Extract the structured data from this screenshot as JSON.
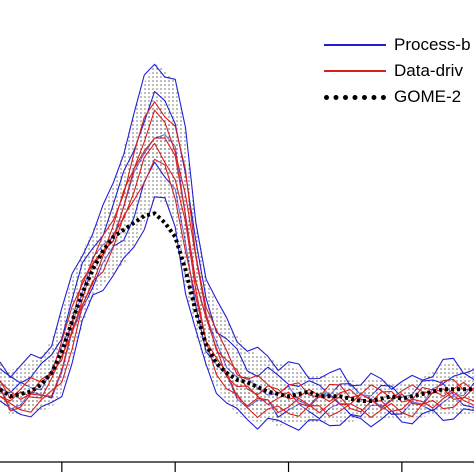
{
  "chart_data": {
    "type": "line",
    "title": "",
    "xlabel": "",
    "ylabel": "",
    "grid": false,
    "legend_placement": "top-right",
    "colors": {
      "process": "#1f1fd6",
      "data": "#d62020",
      "gome": "#000000"
    },
    "x": [
      0,
      1,
      2,
      3,
      4,
      5,
      6,
      7,
      8,
      9,
      10,
      11,
      12,
      13,
      14,
      15,
      16,
      17,
      18,
      19,
      20,
      21,
      22,
      23,
      24,
      25,
      26,
      27,
      28,
      29,
      30,
      31,
      32,
      33,
      34,
      35,
      36,
      37,
      38,
      39,
      40,
      41,
      42,
      43,
      44,
      45,
      46
    ],
    "series": [
      {
        "name": "Process-based",
        "style": "band",
        "upper": [
          0.3,
          0.27,
          0.29,
          0.31,
          0.33,
          0.4,
          0.52,
          0.66,
          0.78,
          0.87,
          0.95,
          1.06,
          1.22,
          1.37,
          1.5,
          1.58,
          1.55,
          1.5,
          1.28,
          0.92,
          0.68,
          0.55,
          0.48,
          0.42,
          0.36,
          0.34,
          0.33,
          0.3,
          0.3,
          0.27,
          0.25,
          0.26,
          0.24,
          0.26,
          0.23,
          0.22,
          0.23,
          0.23,
          0.22,
          0.22,
          0.22,
          0.24,
          0.27,
          0.3,
          0.3,
          0.28,
          0.29
        ],
        "lower": [
          0.14,
          0.08,
          0.09,
          0.1,
          0.1,
          0.11,
          0.18,
          0.32,
          0.46,
          0.58,
          0.64,
          0.68,
          0.72,
          0.8,
          0.9,
          1.0,
          0.98,
          0.9,
          0.62,
          0.42,
          0.28,
          0.2,
          0.14,
          0.08,
          0.06,
          0.05,
          0.06,
          0.03,
          0.05,
          0.04,
          0.04,
          0.04,
          0.06,
          0.05,
          0.05,
          0.06,
          0.06,
          0.06,
          0.07,
          0.06,
          0.07,
          0.07,
          0.08,
          0.08,
          0.08,
          0.08,
          0.09
        ]
      },
      {
        "name": "Data-driven",
        "style": "band",
        "upper": [
          0.22,
          0.18,
          0.19,
          0.21,
          0.23,
          0.28,
          0.38,
          0.52,
          0.66,
          0.76,
          0.82,
          0.9,
          1.05,
          1.2,
          1.32,
          1.42,
          1.38,
          1.3,
          1.1,
          0.78,
          0.56,
          0.42,
          0.34,
          0.28,
          0.24,
          0.22,
          0.21,
          0.2,
          0.2,
          0.19,
          0.18,
          0.18,
          0.19,
          0.19,
          0.18,
          0.18,
          0.18,
          0.18,
          0.18,
          0.18,
          0.18,
          0.19,
          0.2,
          0.21,
          0.21,
          0.21,
          0.21
        ],
        "lower": [
          0.16,
          0.1,
          0.11,
          0.12,
          0.13,
          0.16,
          0.24,
          0.38,
          0.52,
          0.64,
          0.72,
          0.8,
          0.9,
          1.0,
          1.1,
          1.16,
          1.12,
          1.02,
          0.8,
          0.56,
          0.38,
          0.28,
          0.2,
          0.14,
          0.11,
          0.1,
          0.1,
          0.09,
          0.1,
          0.1,
          0.1,
          0.1,
          0.1,
          0.11,
          0.1,
          0.1,
          0.1,
          0.1,
          0.1,
          0.1,
          0.1,
          0.11,
          0.12,
          0.13,
          0.13,
          0.13,
          0.13
        ]
      },
      {
        "name": "GOME-2",
        "style": "dotted",
        "values": [
          0.19,
          0.16,
          0.17,
          0.18,
          0.21,
          0.26,
          0.35,
          0.48,
          0.6,
          0.7,
          0.78,
          0.84,
          0.87,
          0.9,
          0.93,
          0.94,
          0.9,
          0.84,
          0.7,
          0.52,
          0.38,
          0.3,
          0.26,
          0.23,
          0.22,
          0.2,
          0.18,
          0.17,
          0.16,
          0.17,
          0.18,
          0.16,
          0.16,
          0.16,
          0.15,
          0.14,
          0.14,
          0.15,
          0.16,
          0.15,
          0.16,
          0.17,
          0.18,
          0.19,
          0.19,
          0.19,
          0.19
        ]
      }
    ],
    "xlim": [
      0,
      46
    ],
    "ylim": [
      -0.12,
      1.85
    ],
    "legend": [
      {
        "label": "Process-b",
        "series": "process"
      },
      {
        "label": "Data-driv",
        "series": "data"
      },
      {
        "label": "GOME-2",
        "series": "gome"
      }
    ],
    "x_ticks": [
      {
        "value": 6,
        "label": ""
      },
      {
        "value": 17,
        "label": ""
      },
      {
        "value": 28,
        "label": ""
      },
      {
        "value": 39,
        "label": ""
      }
    ]
  }
}
